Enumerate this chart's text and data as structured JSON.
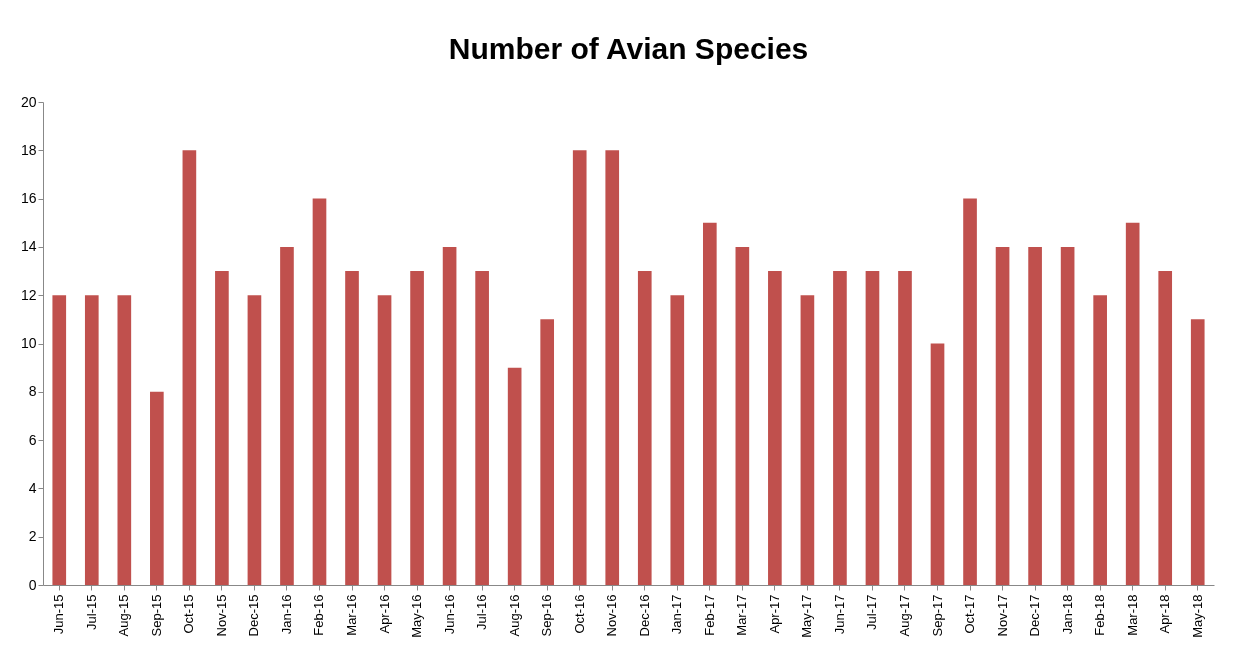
{
  "chart_data": {
    "type": "bar",
    "title": "Number of Avian Species",
    "categories": [
      "Jun-15",
      "Jul-15",
      "Aug-15",
      "Sep-15",
      "Oct-15",
      "Nov-15",
      "Dec-15",
      "Jan-16",
      "Feb-16",
      "Mar-16",
      "Apr-16",
      "May-16",
      "Jun-16",
      "Jul-16",
      "Aug-16",
      "Sep-16",
      "Oct-16",
      "Nov-16",
      "Dec-16",
      "Jan-17",
      "Feb-17",
      "Mar-17",
      "Apr-17",
      "May-17",
      "Jun-17",
      "Jul-17",
      "Aug-17",
      "Sep-17",
      "Oct-17",
      "Nov-17",
      "Dec-17",
      "Jan-18",
      "Feb-18",
      "Mar-18",
      "Apr-18",
      "May-18"
    ],
    "values": [
      12,
      12,
      12,
      8,
      18,
      13,
      12,
      14,
      16,
      13,
      12,
      13,
      14,
      13,
      9,
      11,
      18,
      18,
      13,
      12,
      15,
      14,
      13,
      12,
      13,
      13,
      13,
      10,
      16,
      14,
      14,
      14,
      12,
      15,
      13,
      11
    ],
    "color": "#c0504d",
    "ylim": [
      0,
      20
    ],
    "yticks": [
      0,
      2,
      4,
      6,
      8,
      10,
      12,
      14,
      16,
      18,
      20
    ],
    "grid": false
  }
}
